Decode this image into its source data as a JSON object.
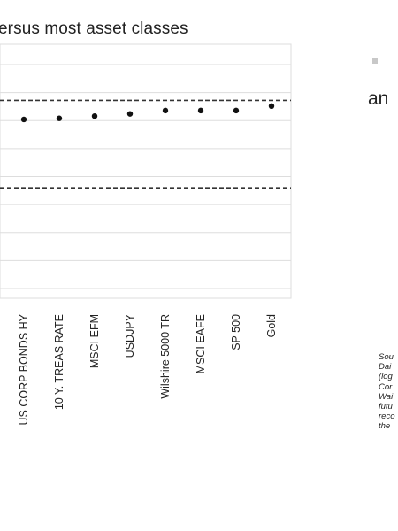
{
  "chart_data": {
    "type": "scatter",
    "title": "ersus most asset classes",
    "categories": [
      "US CORP BONDS HY",
      "10 Y. TREAS RATE",
      "MSCI EFM",
      "USDJPY",
      "Wilshire 5000 TR",
      "MSCI EAFE",
      "SP 500",
      "Gold"
    ],
    "values": [
      0.51,
      0.52,
      0.54,
      0.56,
      0.59,
      0.59,
      0.59,
      0.63
    ],
    "ylim": [
      -1,
      1
    ],
    "reference_lines": [
      0.68,
      -0.1
    ],
    "grid": true,
    "colors": {
      "point": "#111111",
      "grid": "#dddddd",
      "reference": "#333333"
    }
  },
  "side": {
    "word": "an",
    "bullet_color": "#c8c8c8",
    "note_lines": [
      "Sou",
      "Dai",
      "(log",
      "Cor",
      "Wai",
      "futu",
      "reco",
      "the"
    ]
  }
}
